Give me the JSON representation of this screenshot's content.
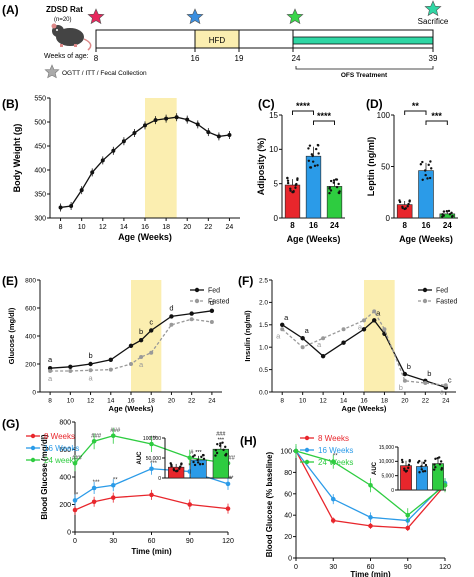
{
  "colors": {
    "red": "#e8262c",
    "blue": "#2b9be8",
    "green": "#2ecc40",
    "teal": "#2fd6a4",
    "hfd": "#fbeeb0",
    "grey": "#999999",
    "black": "#111111"
  },
  "panel_a": {
    "letter": "(A)",
    "subject": "ZDSD Rat",
    "n": "(n=20)",
    "weeks_label": "Weeks of age:",
    "ticks": [
      "8",
      "16",
      "19",
      "24",
      "39"
    ],
    "hfd_label": "HFD",
    "ofs_label": "OFS Treatment",
    "sacrifice_label": "Sacrifice",
    "legend_label": "OGTT / ITT / Fecal Collection",
    "star_icons": [
      "star-icon-red",
      "star-icon-blue",
      "star-icon-green",
      "star-icon-teal"
    ]
  },
  "chart_data": [
    {
      "panel": "(B)",
      "type": "line",
      "ylabel": "Body Weight (g)",
      "xlabel": "Age (Weeks)",
      "x": [
        8,
        9,
        10,
        11,
        12,
        13,
        14,
        15,
        16,
        17,
        18,
        19,
        20,
        21,
        22,
        23,
        24
      ],
      "values": [
        322,
        325,
        358,
        395,
        420,
        440,
        460,
        477,
        493,
        504,
        507,
        510,
        505,
        495,
        479,
        470,
        473
      ],
      "xlim": [
        7,
        25
      ],
      "ylim": [
        300,
        550
      ],
      "xticks": [
        "8",
        "10",
        "12",
        "14",
        "16",
        "18",
        "20",
        "22",
        "24"
      ],
      "yticks": [
        "300",
        "350",
        "400",
        "450",
        "500",
        "550"
      ],
      "shade": [
        16,
        19
      ]
    },
    {
      "panel": "(C)",
      "type": "bar",
      "ylabel": "Adiposity (%)",
      "xlabel": "Age (Weeks)",
      "categories": [
        "8",
        "16",
        "24"
      ],
      "values": [
        4.8,
        9.0,
        4.6
      ],
      "ylim": [
        0,
        15
      ],
      "yticks": [
        "0",
        "5",
        "10",
        "15"
      ],
      "significance": [
        {
          "from": 0,
          "to": 1,
          "label": "****"
        },
        {
          "from": 1,
          "to": 2,
          "label": "****"
        }
      ]
    },
    {
      "panel": "(D)",
      "type": "bar",
      "ylabel": "Leptin (ng/ml)",
      "xlabel": "Age (Weeks)",
      "categories": [
        "8",
        "16",
        "24"
      ],
      "values": [
        13,
        46,
        4
      ],
      "ylim": [
        0,
        100
      ],
      "yticks": [
        "0",
        "50",
        "100"
      ],
      "significance": [
        {
          "from": 0,
          "to": 1,
          "label": "**"
        },
        {
          "from": 1,
          "to": 2,
          "label": "***"
        }
      ]
    },
    {
      "panel": "(E)",
      "type": "line",
      "ylabel": "Glucose (mg/dl)",
      "xlabel": "Age (Weeks)",
      "x": [
        8,
        10,
        12,
        14,
        16,
        17,
        18,
        20,
        22,
        24
      ],
      "xlim": [
        7,
        25
      ],
      "ylim": [
        0,
        800
      ],
      "xticks": [
        "8",
        "10",
        "12",
        "14",
        "16",
        "18",
        "20",
        "22",
        "24"
      ],
      "yticks": [
        "0",
        "200",
        "400",
        "600",
        "800"
      ],
      "shade": [
        16,
        19
      ],
      "series": [
        {
          "name": "Fed",
          "values": [
            170,
            180,
            200,
            230,
            330,
            370,
            440,
            540,
            560,
            580
          ],
          "letters": [
            {
              "x": 8,
              "y": 170,
              "t": "a"
            },
            {
              "x": 12,
              "y": 200,
              "t": "b"
            },
            {
              "x": 17,
              "y": 370,
              "t": "b"
            },
            {
              "x": 18,
              "y": 440,
              "t": "c"
            },
            {
              "x": 20,
              "y": 540,
              "t": "d"
            },
            {
              "x": 24,
              "y": 580,
              "t": "d"
            }
          ]
        },
        {
          "name": "Fasted",
          "values": [
            150,
            150,
            155,
            160,
            200,
            250,
            280,
            480,
            520,
            500
          ],
          "letters": [
            {
              "x": 8,
              "y": 150,
              "t": "a"
            },
            {
              "x": 12,
              "y": 155,
              "t": "a"
            },
            {
              "x": 17,
              "y": 250,
              "t": "a"
            }
          ]
        }
      ]
    },
    {
      "panel": "(F)",
      "type": "line",
      "ylabel": "Insulin (ng/ml)",
      "xlabel": "Age (Weeks)",
      "x": [
        8,
        10,
        12,
        14,
        16,
        17,
        18,
        20,
        22,
        24
      ],
      "xlim": [
        7,
        25
      ],
      "ylim": [
        0,
        2.5
      ],
      "xticks": [
        "8",
        "10",
        "12",
        "14",
        "16",
        "18",
        "20",
        "22",
        "24"
      ],
      "yticks": [
        "0.0",
        "0.5",
        "1.0",
        "1.5",
        "2.0",
        "2.5"
      ],
      "shade": [
        16,
        19
      ],
      "series": [
        {
          "name": "Fed",
          "values": [
            1.5,
            1.2,
            0.8,
            1.1,
            1.4,
            1.6,
            1.3,
            0.4,
            0.25,
            0.1
          ],
          "letters": [
            {
              "x": 8,
              "y": 1.5,
              "t": "a"
            },
            {
              "x": 10,
              "y": 1.2,
              "t": "a"
            },
            {
              "x": 17,
              "y": 1.6,
              "t": "a"
            },
            {
              "x": 20,
              "y": 0.4,
              "t": "b"
            },
            {
              "x": 22,
              "y": 0.25,
              "t": "b"
            },
            {
              "x": 24,
              "y": 0.1,
              "t": "c"
            }
          ]
        },
        {
          "name": "Fasted",
          "values": [
            1.4,
            1.0,
            1.2,
            1.4,
            1.6,
            1.8,
            1.4,
            0.25,
            0.2,
            0.15
          ],
          "letters": [
            {
              "x": 8,
              "y": 1.4,
              "t": "a"
            },
            {
              "x": 12,
              "y": 1.2,
              "t": "a"
            },
            {
              "x": 16,
              "y": 1.6,
              "t": "a"
            },
            {
              "x": 20,
              "y": 0.25,
              "t": "b"
            },
            {
              "x": 24,
              "y": 0.15,
              "t": "c"
            }
          ]
        }
      ]
    },
    {
      "panel": "(G)",
      "type": "line",
      "ylabel": "Blood Glucose (mg/dl)",
      "xlabel": "Time (min)",
      "x": [
        0,
        15,
        30,
        60,
        90,
        120
      ],
      "xlim": [
        0,
        120
      ],
      "ylim": [
        0,
        800
      ],
      "xticks": [
        "0",
        "30",
        "60",
        "90",
        "120"
      ],
      "yticks": [
        "0",
        "200",
        "400",
        "600",
        "800"
      ],
      "series": [
        {
          "name": "8 Weeks",
          "values": [
            160,
            220,
            250,
            270,
            200,
            170
          ]
        },
        {
          "name": "16 Weeks",
          "values": [
            230,
            320,
            340,
            460,
            440,
            350
          ]
        },
        {
          "name": "24 weeks",
          "values": [
            500,
            660,
            700,
            640,
            540,
            500
          ]
        }
      ],
      "annotations": [
        {
          "x": 0,
          "y": 500,
          "t": "###"
        },
        {
          "x": 0,
          "y": 230,
          "t": "*"
        },
        {
          "x": 15,
          "y": 660,
          "t": "###"
        },
        {
          "x": 15,
          "y": 320,
          "t": "***"
        },
        {
          "x": 30,
          "y": 700,
          "t": "###"
        },
        {
          "x": 30,
          "y": 340,
          "t": "**"
        },
        {
          "x": 60,
          "y": 640,
          "t": "***"
        },
        {
          "x": 60,
          "y": 460,
          "t": "***"
        },
        {
          "x": 90,
          "y": 540,
          "t": "#"
        },
        {
          "x": 90,
          "y": 440,
          "t": "***"
        },
        {
          "x": 120,
          "y": 500,
          "t": "###"
        },
        {
          "x": 120,
          "y": 350,
          "t": "***"
        }
      ],
      "inset": {
        "type": "bar",
        "ylabel": "AUC",
        "categories": [
          "8 Weeks",
          "16 Weeks",
          "24 weeks"
        ],
        "values": [
          27000,
          45000,
          72000
        ],
        "ylim": [
          0,
          100000
        ],
        "yticks": [
          "0",
          "50,000",
          "100,000"
        ],
        "labels": [
          "",
          "***",
          "***"
        ],
        "top_labels": [
          "",
          "",
          "###"
        ]
      }
    },
    {
      "panel": "(H)",
      "type": "line",
      "ylabel": "Blood Glucose (% baseline)",
      "xlabel": "Time (min)",
      "x": [
        0,
        30,
        60,
        90,
        120
      ],
      "xlim": [
        0,
        120
      ],
      "ylim": [
        0,
        100
      ],
      "xticks": [
        "0",
        "30",
        "60",
        "90",
        "120"
      ],
      "yticks": [
        "0",
        "20",
        "40",
        "60",
        "80",
        "100"
      ],
      "series": [
        {
          "name": "8 Weeks",
          "values": [
            100,
            35,
            30,
            28,
            68
          ]
        },
        {
          "name": "16 Weeks",
          "values": [
            100,
            55,
            38,
            35,
            70
          ]
        },
        {
          "name": "24 Weeks",
          "values": [
            100,
            90,
            68,
            40,
            68
          ]
        }
      ],
      "annotations": [
        {
          "x": 30,
          "y": 90,
          "t": "**"
        }
      ],
      "inset": {
        "type": "bar",
        "ylabel": "AUC",
        "categories": [
          "8 Weeks",
          "16 Weeks",
          "24 Weeks"
        ],
        "values": [
          8500,
          8200,
          9200
        ],
        "ylim": [
          0,
          15000
        ],
        "yticks": [
          "0",
          "5,000",
          "10,000",
          "15,000"
        ]
      }
    }
  ]
}
